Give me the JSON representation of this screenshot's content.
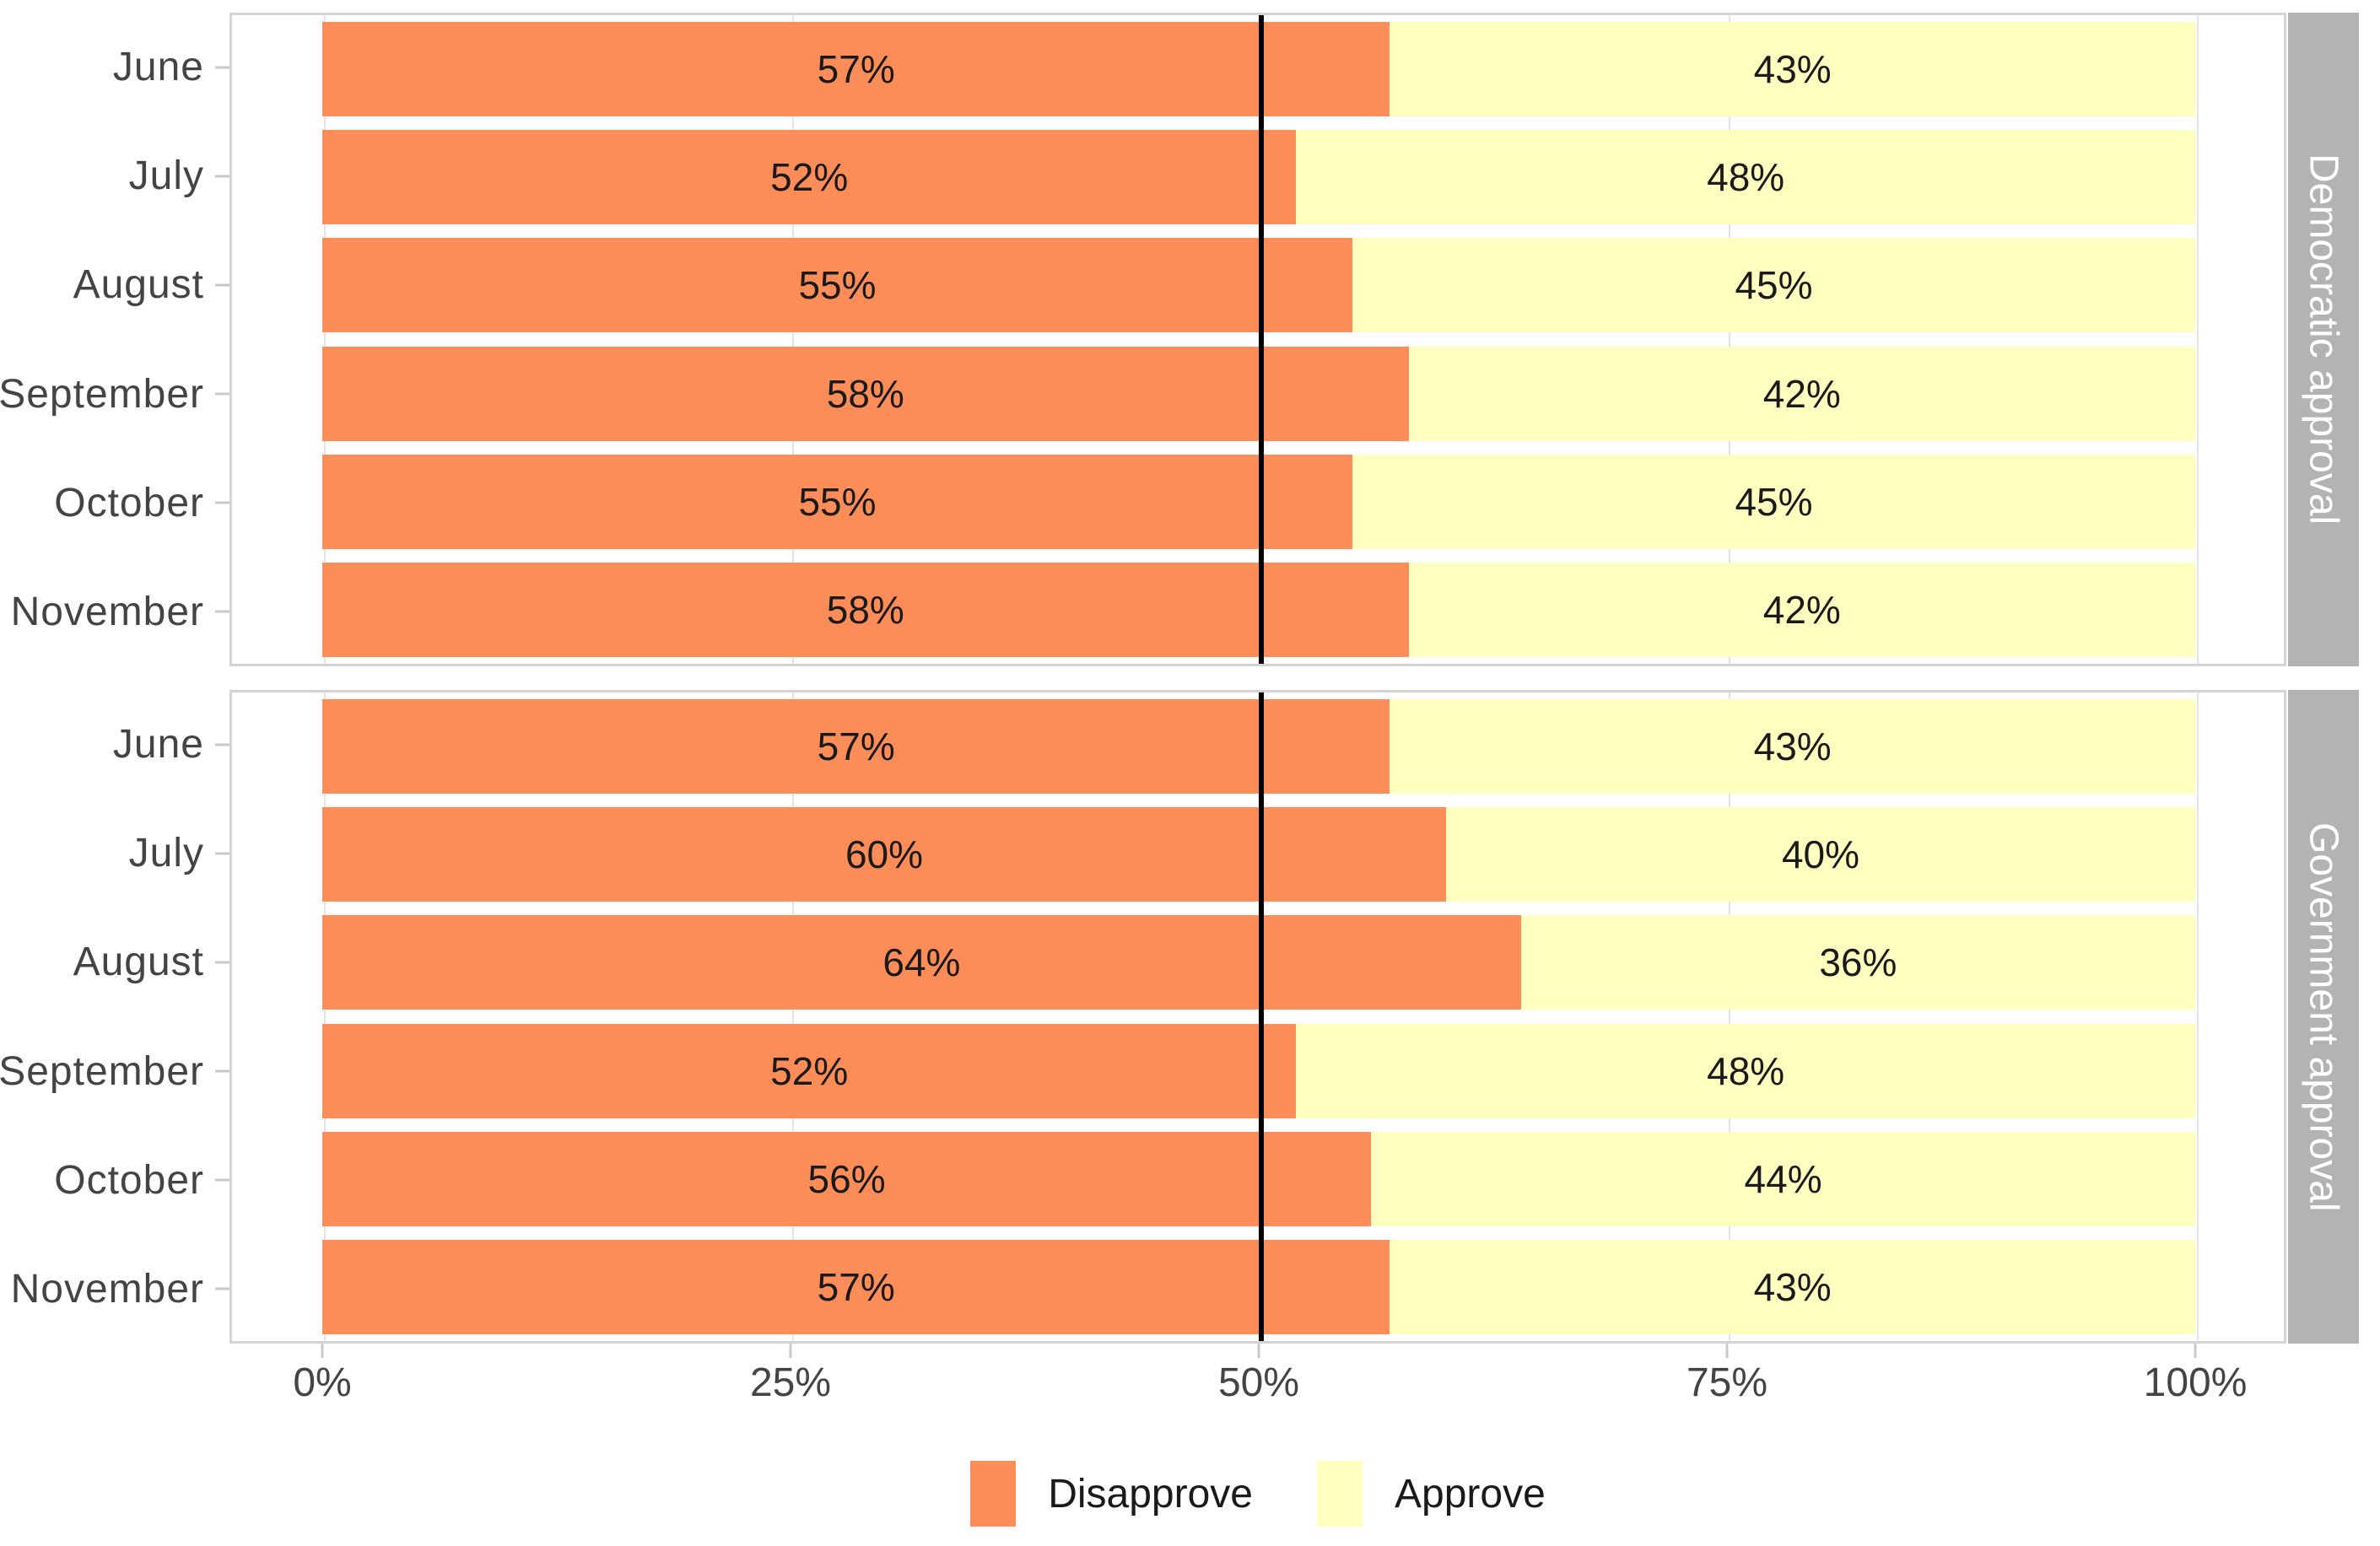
{
  "chart_data": {
    "type": "bar",
    "orientation": "horizontal",
    "stacked": true,
    "title": "",
    "xlabel": "",
    "ylabel": "",
    "x_axis": {
      "range": [
        0,
        100
      ],
      "tick_values": [
        0,
        25,
        50,
        75,
        100
      ],
      "tick_labels": [
        "0%",
        "25%",
        "50%",
        "75%",
        "100%"
      ],
      "grid": true
    },
    "reference_line": {
      "value": 50,
      "color": "#000000"
    },
    "bar_label_format": "percent",
    "facets": [
      {
        "label": "Democratic approval",
        "categories": [
          "June",
          "July",
          "August",
          "September",
          "October",
          "November"
        ],
        "series": [
          {
            "name": "Disapprove",
            "values": [
              57,
              52,
              55,
              58,
              55,
              58
            ]
          },
          {
            "name": "Approve",
            "values": [
              43,
              48,
              45,
              42,
              45,
              42
            ]
          }
        ]
      },
      {
        "label": "Government approval",
        "categories": [
          "June",
          "July",
          "August",
          "September",
          "October",
          "November"
        ],
        "series": [
          {
            "name": "Disapprove",
            "values": [
              57,
              60,
              64,
              52,
              56,
              57
            ]
          },
          {
            "name": "Approve",
            "values": [
              43,
              40,
              36,
              48,
              44,
              43
            ]
          }
        ]
      }
    ],
    "legend": {
      "position": "bottom",
      "entries": [
        {
          "label": "Disapprove",
          "color": "#FC8D59"
        },
        {
          "label": "Approve",
          "color": "#FFFFBF"
        }
      ]
    },
    "style": {
      "strip_background": "#b3b3b3",
      "strip_text_color": "#ffffff",
      "panel_border_color": "#d4d4d4",
      "gridline_color": "#e4e4e4",
      "axis_text_color": "#444444",
      "bar_label_color": "#1a1a1a"
    }
  }
}
